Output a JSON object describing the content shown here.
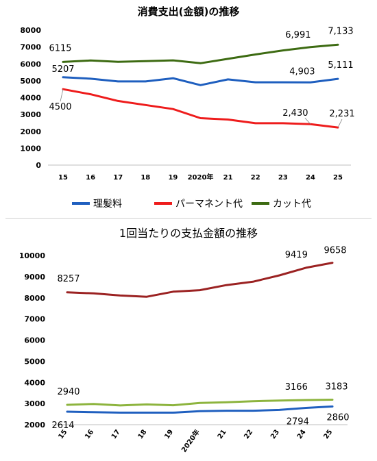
{
  "chart_data": [
    {
      "type": "line",
      "title": "消費支出(金額)の推移",
      "categories": [
        "15",
        "16",
        "17",
        "18",
        "19",
        "2020年",
        "21",
        "22",
        "23",
        "24",
        "25"
      ],
      "ylim": [
        0,
        8000
      ],
      "yticks": [
        "0",
        "1000",
        "2000",
        "3000",
        "4000",
        "5000",
        "6000",
        "7000",
        "8000"
      ],
      "grid": false,
      "legend": "bottom",
      "series": [
        {
          "name": "理髪料",
          "color": "#1f5fbf",
          "values": [
            5207,
            5120,
            4960,
            4960,
            5150,
            4740,
            5080,
            4910,
            4910,
            4903,
            5111
          ],
          "labels": [
            {
              "index": 0,
              "text": "5207"
            },
            {
              "index": 9,
              "text": "4,903"
            },
            {
              "index": 10,
              "text": "5,111"
            }
          ]
        },
        {
          "name": "パーマネント代",
          "color": "#ee1c1c",
          "values": [
            4500,
            4200,
            3800,
            3560,
            3320,
            2780,
            2700,
            2480,
            2480,
            2430,
            2231
          ],
          "labels": [
            {
              "index": 0,
              "text": "4500"
            },
            {
              "index": 9,
              "text": "2,430"
            },
            {
              "index": 10,
              "text": "2,231"
            }
          ]
        },
        {
          "name": "カット代",
          "color": "#3d6b12",
          "values": [
            6115,
            6200,
            6120,
            6160,
            6210,
            6040,
            6300,
            6560,
            6800,
            6991,
            7133
          ],
          "labels": [
            {
              "index": 0,
              "text": "6115"
            },
            {
              "index": 9,
              "text": "6,991"
            },
            {
              "index": 10,
              "text": "7,133"
            }
          ]
        }
      ]
    },
    {
      "type": "line",
      "title": "1回当たりの支払金額の推移",
      "categories": [
        "15",
        "16",
        "17",
        "18",
        "19",
        "2020年",
        "21",
        "22",
        "23",
        "24",
        "25"
      ],
      "ylim": [
        2000,
        10000
      ],
      "yticks": [
        "2000",
        "3000",
        "4000",
        "5000",
        "6000",
        "7000",
        "8000",
        "9000",
        "10000"
      ],
      "grid": false,
      "legend": "none",
      "series": [
        {
          "color": "#9b2222",
          "values": [
            8257,
            8210,
            8110,
            8050,
            8290,
            8360,
            8600,
            8760,
            9060,
            9419,
            9658
          ],
          "labels": [
            {
              "index": 0,
              "text": "8257"
            },
            {
              "index": 9,
              "text": "9419"
            },
            {
              "index": 10,
              "text": "9658"
            }
          ]
        },
        {
          "color": "#8db43e",
          "values": [
            2940,
            2980,
            2910,
            2960,
            2920,
            3030,
            3060,
            3110,
            3140,
            3166,
            3183
          ],
          "labels": [
            {
              "index": 0,
              "text": "2940"
            },
            {
              "index": 9,
              "text": "3166"
            },
            {
              "index": 10,
              "text": "3183"
            }
          ]
        },
        {
          "color": "#1f5fbf",
          "values": [
            2614,
            2590,
            2570,
            2570,
            2570,
            2640,
            2660,
            2660,
            2700,
            2794,
            2860
          ],
          "labels": [
            {
              "index": 0,
              "text": "2614"
            },
            {
              "index": 9,
              "text": "2794"
            },
            {
              "index": 10,
              "text": "2860"
            }
          ]
        }
      ]
    }
  ]
}
